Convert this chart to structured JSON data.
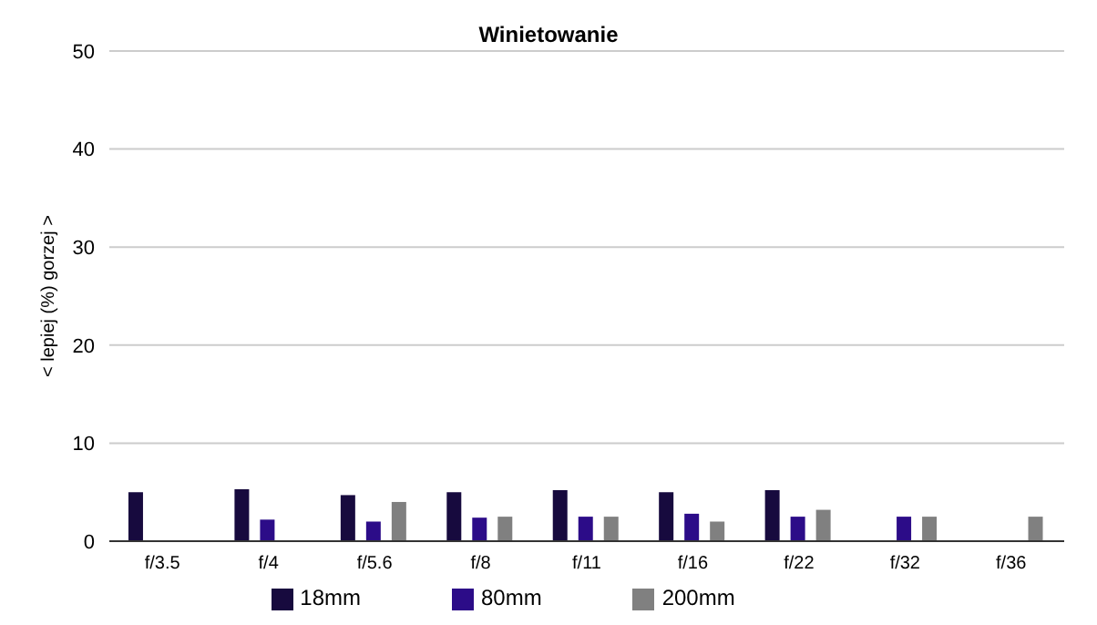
{
  "chart_data": {
    "type": "bar",
    "title": "Winietowanie",
    "ylabel": "< lepiej  (%)  gorzej >",
    "categories": [
      "f/3.5",
      "f/4",
      "f/5.6",
      "f/8",
      "f/11",
      "f/16",
      "f/22",
      "f/32",
      "f/36"
    ],
    "series": [
      {
        "name": "18mm",
        "color": "#170a3e",
        "values": [
          5.0,
          5.3,
          4.7,
          5.0,
          5.2,
          5.0,
          5.2,
          null,
          null
        ]
      },
      {
        "name": "80mm",
        "color": "#2c0c88",
        "values": [
          null,
          2.2,
          2.0,
          2.4,
          2.5,
          2.8,
          2.5,
          2.5,
          null
        ]
      },
      {
        "name": "200mm",
        "color": "#808080",
        "values": [
          null,
          null,
          4.0,
          2.5,
          2.5,
          2.0,
          3.2,
          2.5,
          2.5
        ]
      }
    ],
    "ylim": [
      0,
      50
    ],
    "yticks": [
      0,
      10,
      20,
      30,
      40,
      50
    ],
    "grid": "y",
    "legend": "bottom"
  }
}
